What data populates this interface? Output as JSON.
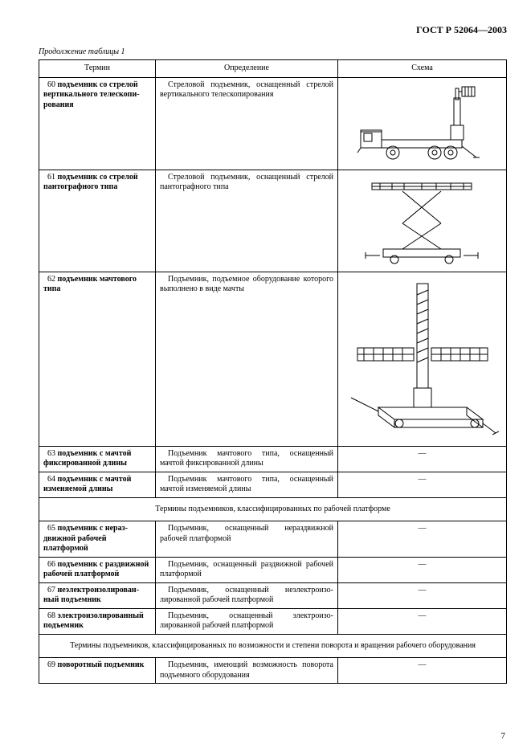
{
  "document_code": "ГОСТ Р 52064—2003",
  "table_continuation": "Продолжение таблицы 1",
  "headers": {
    "term": "Термин",
    "definition": "Определение",
    "schema": "Схема"
  },
  "rows": [
    {
      "num": "60",
      "term_bold": "подъемник со стрелой вертикального телескопи­рования",
      "definition": "Стреловой подъемник, оснащенный стрелой вертикального телескопирования",
      "schema": "truck-vertical"
    },
    {
      "num": "61",
      "term_bold": "подъемник со стрелой пантографного типа",
      "definition": "Стреловой подъемник, оснащенный стрелой пантографного типа",
      "schema": "scissor"
    },
    {
      "num": "62",
      "term_bold": "подъемник мачтового типа",
      "definition": "Подъемник, подъемное оборудование которого выполнено в виде мачты",
      "schema": "mast"
    },
    {
      "num": "63",
      "term_bold": "подъемник с мачтой фиксированной длины",
      "definition": "Подъемник мачтового типа, оснащенный мачтой фиксированной длины",
      "schema": "dash"
    },
    {
      "num": "64",
      "term_bold": "подъемник с мачтой изменяемой длины",
      "definition": "Подъемник мачтового типа, оснащенный мачтой изменяемой длины",
      "schema": "dash"
    }
  ],
  "section1": "Термины подъемников, классифицированных по рабочей платформе",
  "rows2": [
    {
      "num": "65",
      "term_bold": "подъемник с нераз­движной рабочей платформой",
      "definition": "Подъемник, оснащенный нераздвижной рабочей платформой",
      "schema": "dash"
    },
    {
      "num": "66",
      "term_bold": "подъемник с раздвиж­ной рабочей платформой",
      "definition": "Подъемник, оснащенный раздвижной рабочей платформой",
      "schema": "dash"
    },
    {
      "num": "67",
      "term_bold": "неэлектроизолирован­ный подъемник",
      "definition": "Подъемник, оснащенный неэлектроизо­лированной рабочей платформой",
      "schema": "dash"
    },
    {
      "num": "68",
      "term_bold": "электроизолирован­ный подъемник",
      "definition": "Подъемник, оснащенный электроизо­лированной рабочей платформой",
      "schema": "dash"
    }
  ],
  "section2": "Термины подъемников, классифицированных по возможности и степени поворота и вращения рабочего оборудования",
  "rows3": [
    {
      "num": "69",
      "term_bold": "поворотный подъем­ник",
      "definition": "Подъемник, имеющий возможность поворота подъемного оборудования",
      "schema": "dash"
    }
  ],
  "page_number": "7",
  "svg": {
    "stroke": "#000000",
    "stroke_width": 1,
    "fill": "none"
  }
}
